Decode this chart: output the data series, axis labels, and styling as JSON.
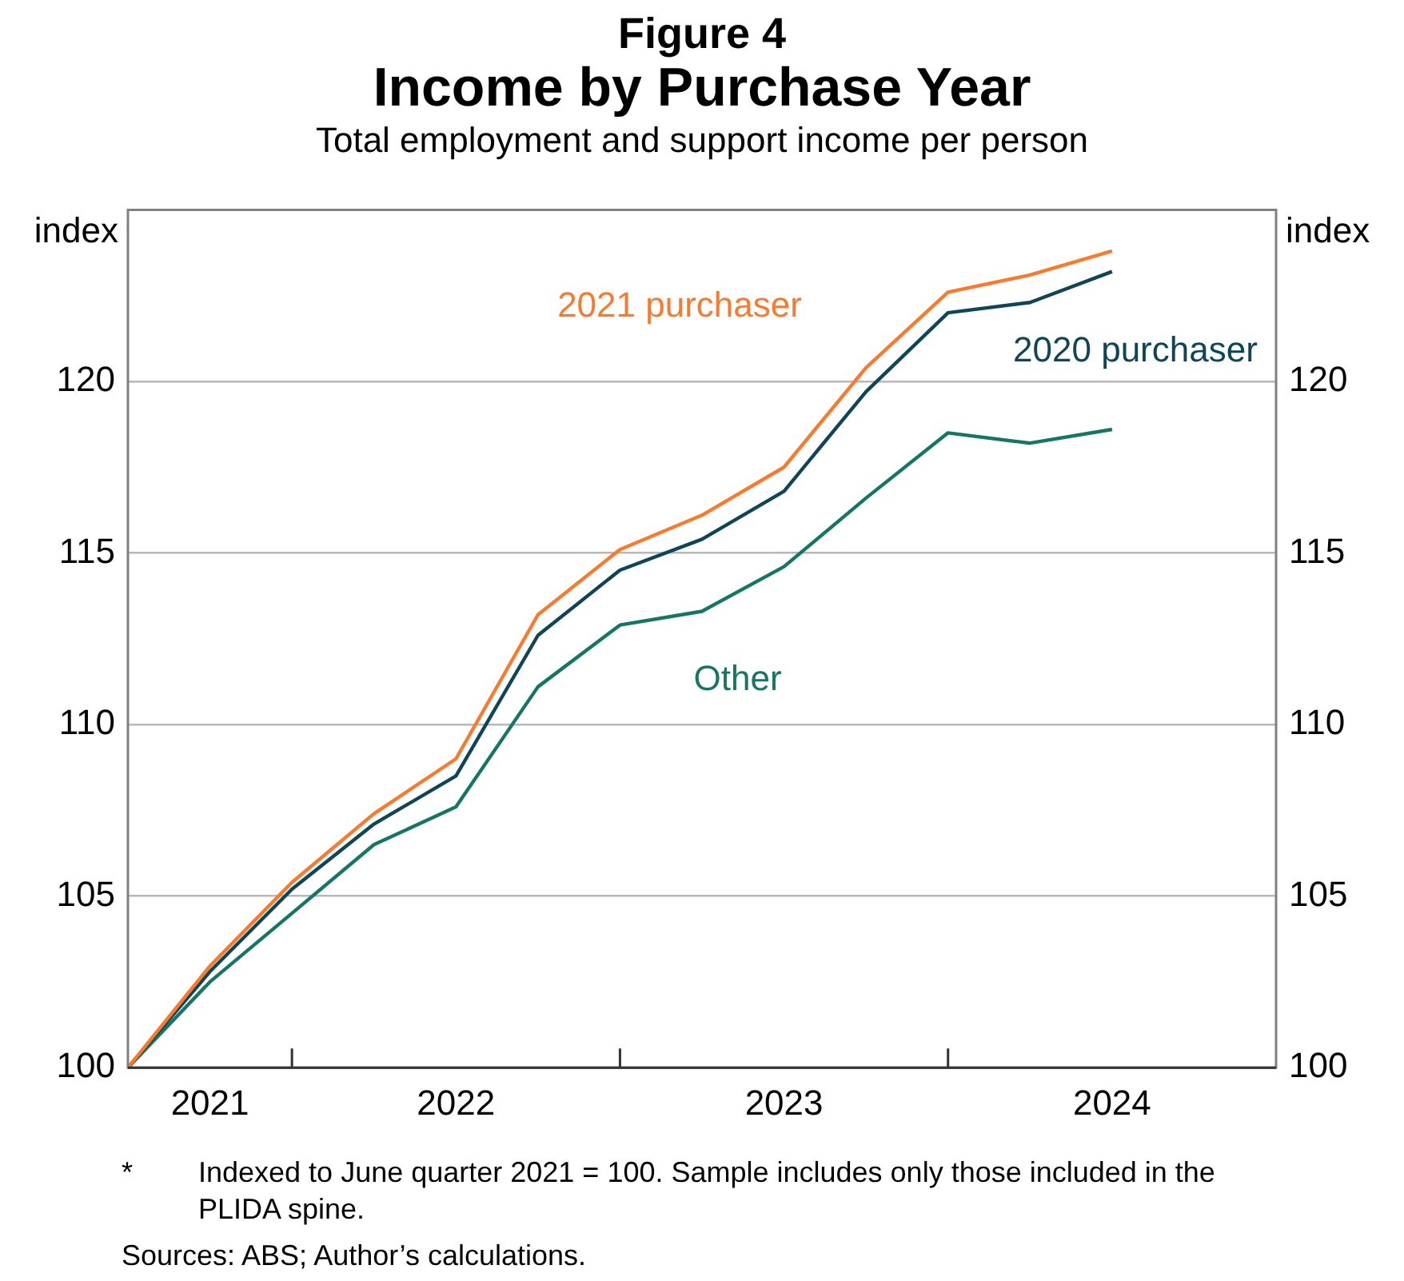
{
  "chart_data": {
    "type": "line",
    "title": "Figure 4\nIncome by Purchase Year",
    "subtitle": "Total employment and support income per person",
    "ylabel": "index",
    "y2label": "index",
    "x": [
      "2021-06",
      "2021-09",
      "2021-12",
      "2022-03",
      "2022-06",
      "2022-09",
      "2022-12",
      "2023-03",
      "2023-06",
      "2023-09",
      "2023-12",
      "2024-03",
      "2024-06"
    ],
    "xlim": [
      "2021-06",
      "2024-12"
    ],
    "xticks": [
      {
        "value": "2021-09",
        "label": "2021"
      },
      {
        "value": "2021-12",
        "label": null
      },
      {
        "value": "2022-06",
        "label": "2022"
      },
      {
        "value": "2022-12",
        "label": null
      },
      {
        "value": "2023-06",
        "label": "2023"
      },
      {
        "value": "2023-12",
        "label": null
      },
      {
        "value": "2024-06",
        "label": "2024"
      }
    ],
    "ylim": [
      100,
      125
    ],
    "yticks": [
      100,
      105,
      110,
      115,
      120
    ],
    "y2lim": [
      100,
      125
    ],
    "y2ticks": [
      100,
      105,
      110,
      115,
      120
    ],
    "grid": "y",
    "legend": false,
    "marker": "none",
    "line_style": "solid",
    "series": [
      {
        "name": "2021 purchaser",
        "color": "#f97a2e",
        "values": [
          100,
          102.96,
          105.4,
          107.4,
          109.0,
          113.2,
          115.1,
          116.1,
          117.5,
          120.4,
          122.6,
          123.1,
          123.8
        ]
      },
      {
        "name": "2020 purchaser",
        "color": "#0f4556",
        "values": [
          100,
          102.8,
          105.2,
          107.1,
          108.5,
          112.6,
          114.5,
          115.4,
          116.8,
          119.7,
          122.0,
          122.3,
          123.2
        ]
      },
      {
        "name": "Other",
        "color": "#167564",
        "values": [
          100,
          102.5,
          104.5,
          106.5,
          107.6,
          111.1,
          112.9,
          113.3,
          114.6,
          116.6,
          118.5,
          118.2,
          118.6
        ]
      }
    ],
    "annotations": [
      "* Indexed to June quarter 2021 = 100. Sample includes only those included in the PLIDA spine.",
      "Sources: ABS; Author’s calculations."
    ]
  }
}
